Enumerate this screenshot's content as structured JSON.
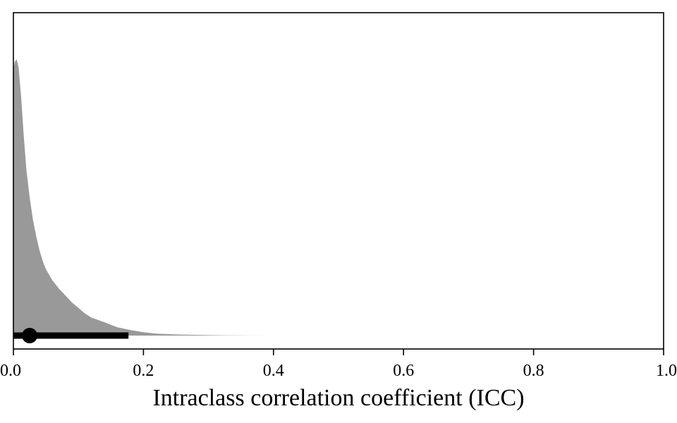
{
  "chart_data": {
    "type": "area",
    "title": "",
    "xlabel": "Intraclass correlation coefficient (ICC)",
    "ylabel": "",
    "xlim": [
      0,
      1
    ],
    "ylim": [
      0,
      1
    ],
    "x_ticks": [
      0,
      0.2,
      0.4,
      0.6,
      0.8,
      1
    ],
    "x_tick_labels": [
      "0.0",
      "0.2",
      "0.4",
      "0.6",
      "0.8",
      "1.0"
    ],
    "grid": false,
    "legend": "none",
    "density": {
      "x": [
        0,
        0.002,
        0.005,
        0.008,
        0.012,
        0.016,
        0.02,
        0.025,
        0.03,
        0.035,
        0.04,
        0.045,
        0.05,
        0.06,
        0.07,
        0.08,
        0.09,
        0.1,
        0.11,
        0.12,
        0.14,
        0.16,
        0.18,
        0.2,
        0.22,
        0.25,
        0.28,
        0.32,
        0.36,
        0.39
      ],
      "y": [
        0.96,
        0.99,
        1.0,
        0.97,
        0.86,
        0.72,
        0.6,
        0.5,
        0.42,
        0.36,
        0.31,
        0.27,
        0.24,
        0.2,
        0.17,
        0.145,
        0.12,
        0.1,
        0.08,
        0.065,
        0.048,
        0.03,
        0.02,
        0.012,
        0.007,
        0.004,
        0.0025,
        0.001,
        0.0003,
        0.0
      ],
      "fill": "#999999"
    },
    "point_estimate": 0.025,
    "interval": [
      0.0,
      0.177
    ],
    "interval_color": "#000000"
  }
}
